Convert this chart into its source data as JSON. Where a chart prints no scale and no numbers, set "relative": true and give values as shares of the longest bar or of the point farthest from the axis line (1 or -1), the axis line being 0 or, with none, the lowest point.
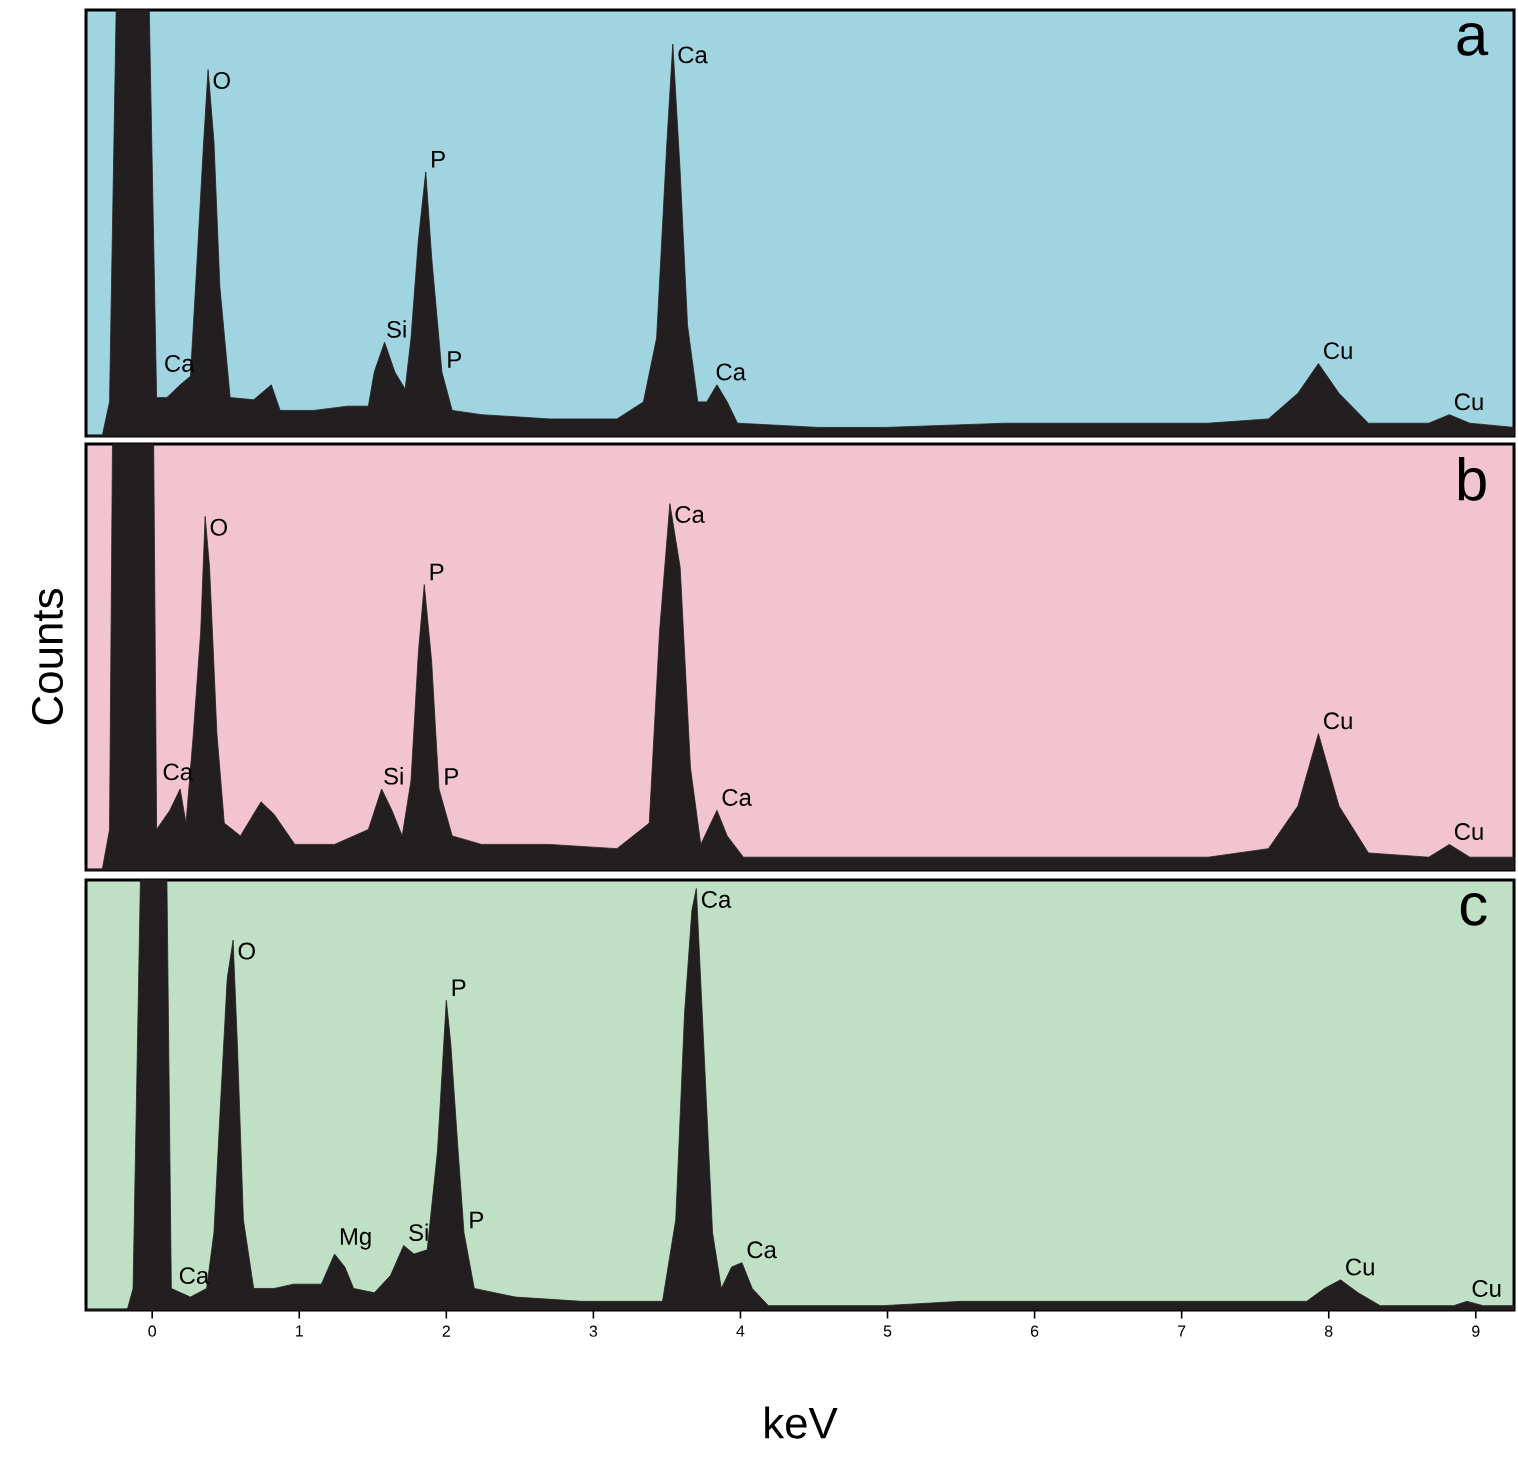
{
  "chart_data": [
    {
      "type": "area",
      "relative": true,
      "tick_labels": false,
      "xlim": [
        -0.45,
        9.26
      ],
      "series": [
        {
          "color": "#231f20",
          "x": [
            -0.44,
            -0.34,
            -0.29,
            -0.245,
            -0.02,
            0.03,
            0.1,
            0.19,
            0.26,
            0.3,
            0.35,
            0.38,
            0.42,
            0.46,
            0.53,
            0.69,
            0.81,
            0.87,
            1.1,
            1.33,
            1.47,
            1.51,
            1.58,
            1.65,
            1.72,
            1.76,
            1.81,
            1.86,
            1.9,
            1.97,
            2.04,
            2.24,
            2.7,
            3.16,
            3.34,
            3.43,
            3.5,
            3.54,
            3.59,
            3.64,
            3.71,
            3.77,
            3.84,
            3.91,
            3.98,
            4.53,
            4.98,
            5.81,
            7.18,
            7.59,
            7.79,
            7.93,
            8.07,
            8.27,
            8.68,
            8.82,
            8.96,
            9.26
          ],
          "values": [
            0,
            0,
            0.08,
            1,
            1,
            0.09,
            0.09,
            0.12,
            0.14,
            0.38,
            0.69,
            0.86,
            0.69,
            0.35,
            0.09,
            0.085,
            0.12,
            0.06,
            0.06,
            0.07,
            0.07,
            0.15,
            0.22,
            0.15,
            0.11,
            0.23,
            0.46,
            0.62,
            0.42,
            0.15,
            0.06,
            0.05,
            0.04,
            0.04,
            0.08,
            0.23,
            0.69,
            0.92,
            0.62,
            0.26,
            0.08,
            0.08,
            0.12,
            0.08,
            0.03,
            0.02,
            0.02,
            0.03,
            0.03,
            0.04,
            0.1,
            0.17,
            0.1,
            0.03,
            0.03,
            0.05,
            0.03,
            0.02
          ]
        }
      ],
      "annotations": [
        "a",
        {
          "text": "O",
          "x": 0.38,
          "y": 0.86
        },
        {
          "text": "Ca",
          "x": 0.05,
          "y": 0.14
        },
        {
          "text": "Si",
          "x": 1.56,
          "y": 0.22
        },
        {
          "text": "P",
          "x": 1.86,
          "y": 0.62
        },
        {
          "text": "P",
          "x": 1.97,
          "y": 0.15
        },
        {
          "text": "Ca",
          "x": 3.54,
          "y": 0.92
        },
        {
          "text": "Ca",
          "x": 3.8,
          "y": 0.12
        },
        {
          "text": "Cu",
          "x": 7.93,
          "y": 0.17
        },
        {
          "text": "Cu",
          "x": 8.82,
          "y": 0.05
        }
      ]
    },
    {
      "type": "area",
      "relative": true,
      "tick_labels": false,
      "xlim": [
        -0.45,
        9.26
      ],
      "ylabel": "Counts",
      "series": [
        {
          "color": "#231f20",
          "x": [
            -0.45,
            -0.34,
            -0.29,
            -0.27,
            0.01,
            0.03,
            0.12,
            0.19,
            0.23,
            0.28,
            0.33,
            0.36,
            0.39,
            0.44,
            0.49,
            0.6,
            0.74,
            0.83,
            0.97,
            1.24,
            1.47,
            1.56,
            1.63,
            1.7,
            1.76,
            1.81,
            1.85,
            1.9,
            1.95,
            2.04,
            2.24,
            2.7,
            3.16,
            3.38,
            3.45,
            3.52,
            3.59,
            3.66,
            3.73,
            3.84,
            3.91,
            4.02,
            4.98,
            5.81,
            7.18,
            7.59,
            7.79,
            7.93,
            8.07,
            8.27,
            8.68,
            8.82,
            8.96,
            9.26
          ],
          "values": [
            0,
            0,
            0.095,
            1,
            1,
            0.095,
            0.14,
            0.19,
            0.11,
            0.32,
            0.56,
            0.83,
            0.71,
            0.32,
            0.11,
            0.08,
            0.16,
            0.13,
            0.06,
            0.06,
            0.095,
            0.19,
            0.14,
            0.08,
            0.21,
            0.51,
            0.67,
            0.49,
            0.19,
            0.08,
            0.06,
            0.06,
            0.05,
            0.11,
            0.56,
            0.86,
            0.71,
            0.24,
            0.06,
            0.14,
            0.08,
            0.03,
            0.03,
            0.03,
            0.03,
            0.05,
            0.15,
            0.32,
            0.15,
            0.04,
            0.03,
            0.06,
            0.03,
            0.03
          ]
        }
      ],
      "annotations": [
        "b",
        {
          "text": "O",
          "x": 0.36,
          "y": 0.83
        },
        {
          "text": "Ca",
          "x": 0.04,
          "y": 0.2
        },
        {
          "text": "Si",
          "x": 1.54,
          "y": 0.19
        },
        {
          "text": "P",
          "x": 1.85,
          "y": 0.67
        },
        {
          "text": "P",
          "x": 1.95,
          "y": 0.19
        },
        {
          "text": "Ca",
          "x": 3.84,
          "y": 0.14
        },
        {
          "text": "Ca",
          "x": 3.52,
          "y": 0.86
        },
        {
          "text": "Cu",
          "x": 7.93,
          "y": 0.32
        },
        {
          "text": "Cu",
          "x": 8.82,
          "y": 0.06
        }
      ]
    },
    {
      "type": "area",
      "relative": true,
      "tick_labels": "x",
      "xlim": [
        -0.45,
        9.26
      ],
      "xticks": [
        0,
        1,
        2,
        3,
        4,
        5,
        6,
        7,
        8,
        9
      ],
      "xlabel": "keV",
      "series": [
        {
          "color": "#231f20",
          "x": [
            -0.45,
            -0.17,
            -0.13,
            -0.08,
            0.1,
            0.13,
            0.26,
            0.37,
            0.42,
            0.46,
            0.51,
            0.55,
            0.58,
            0.62,
            0.69,
            0.83,
            0.96,
            1.15,
            1.24,
            1.31,
            1.37,
            1.51,
            1.62,
            1.71,
            1.78,
            1.87,
            1.94,
            2.0,
            2.03,
            2.08,
            2.12,
            2.19,
            2.47,
            2.92,
            3.47,
            3.56,
            3.62,
            3.67,
            3.7,
            3.74,
            3.81,
            3.87,
            3.94,
            4.01,
            4.08,
            4.19,
            4.97,
            5.5,
            7.5,
            7.85,
            7.97,
            8.08,
            8.2,
            8.35,
            8.85,
            8.94,
            9.05,
            9.26
          ],
          "values": [
            0,
            0,
            0.05,
            1,
            1,
            0.05,
            0.03,
            0.05,
            0.18,
            0.45,
            0.77,
            0.86,
            0.61,
            0.21,
            0.05,
            0.05,
            0.06,
            0.06,
            0.13,
            0.1,
            0.05,
            0.04,
            0.08,
            0.15,
            0.13,
            0.14,
            0.37,
            0.72,
            0.62,
            0.37,
            0.18,
            0.05,
            0.03,
            0.02,
            0.02,
            0.21,
            0.69,
            0.93,
            0.98,
            0.69,
            0.18,
            0.05,
            0.1,
            0.11,
            0.05,
            0.01,
            0.01,
            0.02,
            0.02,
            0.02,
            0.05,
            0.07,
            0.04,
            0.01,
            0.01,
            0.02,
            0.01,
            0.01
          ]
        }
      ],
      "annotations": [
        "c",
        {
          "text": "O",
          "x": 0.55,
          "y": 0.86
        },
        {
          "text": "Ca",
          "x": 0.15,
          "y": 0.05
        },
        {
          "text": "Mg",
          "x": 1.24,
          "y": 0.13
        },
        {
          "text": "Si",
          "x": 1.71,
          "y": 0.15
        },
        {
          "text": "P",
          "x": 2.0,
          "y": 0.72
        },
        {
          "text": "P",
          "x": 2.12,
          "y": 0.18
        },
        {
          "text": "Ca",
          "x": 3.7,
          "y": 0.98
        },
        {
          "text": "Ca",
          "x": 4.01,
          "y": 0.11
        },
        {
          "text": "Cu",
          "x": 8.08,
          "y": 0.07
        },
        {
          "text": "Cu",
          "x": 8.94,
          "y": 0.02
        }
      ]
    }
  ]
}
